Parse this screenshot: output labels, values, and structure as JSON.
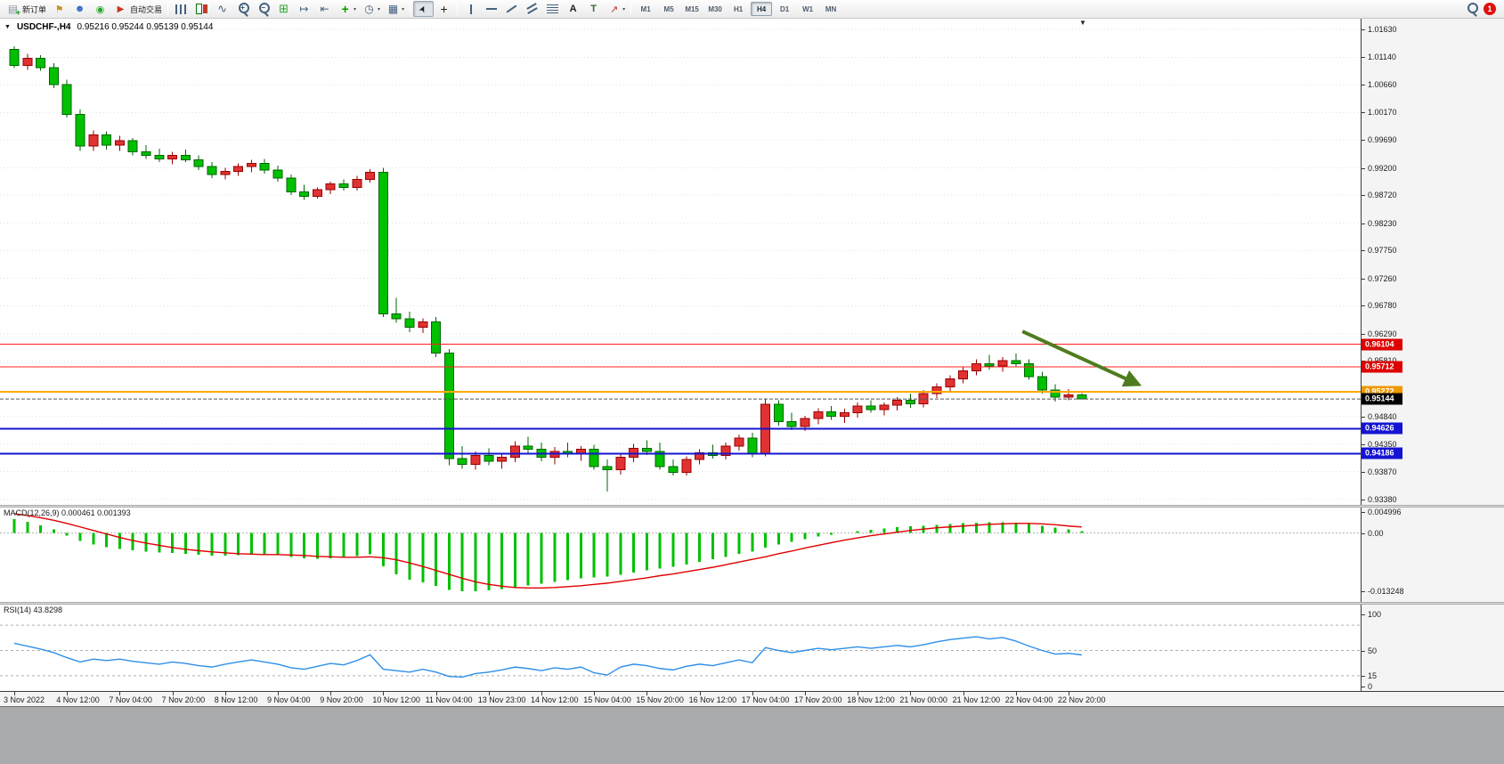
{
  "toolbar": {
    "items": [
      {
        "kind": "button",
        "name": "new-order-button",
        "icon": "new-order",
        "label": "新订单"
      },
      {
        "kind": "icon",
        "name": "profiles-button",
        "icon": "profiles"
      },
      {
        "kind": "icon",
        "name": "market-watch-button",
        "icon": "market-watch"
      },
      {
        "kind": "icon",
        "name": "navigator-button",
        "icon": "navigator"
      },
      {
        "kind": "button",
        "name": "auto-trading-button",
        "icon": "auto-trading",
        "label": "自动交易"
      },
      {
        "kind": "sep"
      },
      {
        "kind": "icon",
        "name": "bar-chart-button",
        "icon": "chart-bars"
      },
      {
        "kind": "icon",
        "name": "candlestick-chart-button",
        "icon": "chart-candles"
      },
      {
        "kind": "icon",
        "name": "line-chart-button",
        "icon": "chart-line"
      },
      {
        "kind": "icon",
        "name": "zoom-in-button",
        "icon": "zoom-in",
        "glyph": "+"
      },
      {
        "kind": "icon",
        "name": "zoom-out-button",
        "icon": "zoom-out",
        "glyph": "−"
      },
      {
        "kind": "icon",
        "name": "tile-windows-button",
        "icon": "tile"
      },
      {
        "kind": "icon",
        "name": "auto-scroll-button",
        "icon": "auto-scroll"
      },
      {
        "kind": "icon",
        "name": "chart-shift-button",
        "icon": "chart-shift"
      },
      {
        "kind": "icon",
        "name": "indicators-button",
        "icon": "indicators",
        "dropdown": true
      },
      {
        "kind": "icon",
        "name": "periods-button",
        "icon": "periods",
        "dropdown": true
      },
      {
        "kind": "icon",
        "name": "templates-button",
        "icon": "templates",
        "dropdown": true
      },
      {
        "kind": "sep"
      },
      {
        "kind": "icon",
        "name": "cursor-button",
        "icon": "cursor",
        "active": true
      },
      {
        "kind": "icon",
        "name": "crosshair-button",
        "icon": "crosshair"
      },
      {
        "kind": "sep"
      },
      {
        "kind": "icon",
        "name": "vertical-line-button",
        "icon": "vline"
      },
      {
        "kind": "icon",
        "name": "horizontal-line-button",
        "icon": "hline"
      },
      {
        "kind": "icon",
        "name": "trendline-button",
        "icon": "trendline"
      },
      {
        "kind": "icon",
        "name": "channel-button",
        "icon": "channel"
      },
      {
        "kind": "icon",
        "name": "fibonacci-button",
        "icon": "fibonacci"
      },
      {
        "kind": "icon",
        "name": "text-button",
        "icon": "text"
      },
      {
        "kind": "icon",
        "name": "text-label-button",
        "icon": "label"
      },
      {
        "kind": "icon",
        "name": "arrows-button",
        "icon": "arrows",
        "dropdown": true
      },
      {
        "kind": "sep"
      },
      {
        "kind": "tf",
        "name": "timeframe-m1",
        "label": "M1"
      },
      {
        "kind": "tf",
        "name": "timeframe-m5",
        "label": "M5"
      },
      {
        "kind": "tf",
        "name": "timeframe-m15",
        "label": "M15"
      },
      {
        "kind": "tf",
        "name": "timeframe-m30",
        "label": "M30"
      },
      {
        "kind": "tf",
        "name": "timeframe-h1",
        "label": "H1"
      },
      {
        "kind": "tf",
        "name": "timeframe-h4",
        "label": "H4",
        "active": true
      },
      {
        "kind": "tf",
        "name": "timeframe-d1",
        "label": "D1"
      },
      {
        "kind": "tf",
        "name": "timeframe-w1",
        "label": "W1"
      },
      {
        "kind": "tf",
        "name": "timeframe-mn",
        "label": "MN"
      }
    ],
    "right": {
      "notification_count": "1"
    }
  },
  "chart_data": {
    "type": "candlestick",
    "symbol_title": "USDCHF-,H4",
    "ohlc_text": "0.95216 0.95244 0.95139 0.95144",
    "colors": {
      "bull": "#E03232",
      "bull_border": "#990000",
      "bear": "#00C000",
      "bear_border": "#006600",
      "macd_histogram": "#00C000",
      "macd_signal": "#E00000",
      "rsi_line": "#2E8FE8",
      "grid": "#e2e2e2"
    },
    "price_axis": {
      "top_price": 1.018175,
      "bottom_price": 0.9328625,
      "ticks": [
        "1.01630",
        "1.01140",
        "1.00660",
        "1.00170",
        "0.99690",
        "0.99200",
        "0.98720",
        "0.98230",
        "0.97750",
        "0.97260",
        "0.96780",
        "0.96290",
        "0.95810",
        "0.94840",
        "0.94350",
        "0.93870",
        "0.93380"
      ]
    },
    "candles": [
      [
        1.0128,
        1.0133,
        1.0095,
        1.01
      ],
      [
        1.01,
        1.012,
        1.0092,
        1.0112
      ],
      [
        1.0112,
        1.0118,
        1.009,
        1.0096
      ],
      [
        1.0096,
        1.0104,
        1.006,
        1.0066
      ],
      [
        1.0066,
        1.0075,
        1.0008,
        1.0014
      ],
      [
        1.0014,
        1.0022,
        0.995,
        0.9958
      ],
      [
        0.9958,
        0.9986,
        0.995,
        0.9978
      ],
      [
        0.9978,
        0.9984,
        0.9952,
        0.996
      ],
      [
        0.996,
        0.9976,
        0.995,
        0.9968
      ],
      [
        0.9968,
        0.9972,
        0.9942,
        0.9948
      ],
      [
        0.9948,
        0.996,
        0.9936,
        0.9942
      ],
      [
        0.9942,
        0.9954,
        0.993,
        0.9936
      ],
      [
        0.9936,
        0.9948,
        0.9926,
        0.9942
      ],
      [
        0.9942,
        0.9952,
        0.993,
        0.9934
      ],
      [
        0.9934,
        0.9942,
        0.9916,
        0.9922
      ],
      [
        0.9922,
        0.993,
        0.9902,
        0.9908
      ],
      [
        0.9908,
        0.992,
        0.99,
        0.9914
      ],
      [
        0.9914,
        0.9928,
        0.9906,
        0.9922
      ],
      [
        0.9922,
        0.9934,
        0.9912,
        0.9928
      ],
      [
        0.9928,
        0.9936,
        0.991,
        0.9916
      ],
      [
        0.9916,
        0.9924,
        0.9896,
        0.9902
      ],
      [
        0.9902,
        0.9908,
        0.9872,
        0.9878
      ],
      [
        0.9878,
        0.989,
        0.9864,
        0.987
      ],
      [
        0.987,
        0.9886,
        0.9866,
        0.9882
      ],
      [
        0.9882,
        0.9896,
        0.9874,
        0.9892
      ],
      [
        0.9892,
        0.99,
        0.988,
        0.9886
      ],
      [
        0.9886,
        0.9906,
        0.988,
        0.99
      ],
      [
        0.99,
        0.9918,
        0.9894,
        0.9912
      ],
      [
        0.9912,
        0.992,
        0.9658,
        0.9664
      ],
      [
        0.9664,
        0.9692,
        0.9648,
        0.9655
      ],
      [
        0.9655,
        0.9668,
        0.9632,
        0.964
      ],
      [
        0.964,
        0.9656,
        0.963,
        0.965
      ],
      [
        0.965,
        0.9658,
        0.9588,
        0.9595
      ],
      [
        0.9595,
        0.9602,
        0.9398,
        0.941
      ],
      [
        0.941,
        0.9432,
        0.9392,
        0.94
      ],
      [
        0.94,
        0.9422,
        0.939,
        0.9415
      ],
      [
        0.9415,
        0.9428,
        0.9398,
        0.9405
      ],
      [
        0.9405,
        0.942,
        0.9392,
        0.9412
      ],
      [
        0.9412,
        0.944,
        0.9404,
        0.9432
      ],
      [
        0.9432,
        0.9448,
        0.942,
        0.9426
      ],
      [
        0.9426,
        0.9438,
        0.9405,
        0.9412
      ],
      [
        0.9412,
        0.943,
        0.94,
        0.9422
      ],
      [
        0.9422,
        0.9438,
        0.9412,
        0.9418
      ],
      [
        0.9418,
        0.9432,
        0.9406,
        0.9426
      ],
      [
        0.9426,
        0.9434,
        0.939,
        0.9396
      ],
      [
        0.9396,
        0.9408,
        0.9352,
        0.939
      ],
      [
        0.939,
        0.942,
        0.9382,
        0.9412
      ],
      [
        0.9412,
        0.9436,
        0.9404,
        0.9428
      ],
      [
        0.9428,
        0.9442,
        0.9416,
        0.9422
      ],
      [
        0.9422,
        0.9438,
        0.939,
        0.9396
      ],
      [
        0.9396,
        0.9408,
        0.938,
        0.9386
      ],
      [
        0.9386,
        0.9414,
        0.938,
        0.9408
      ],
      [
        0.9408,
        0.9426,
        0.94,
        0.942
      ],
      [
        0.942,
        0.9434,
        0.941,
        0.9415
      ],
      [
        0.9415,
        0.9438,
        0.9408,
        0.9432
      ],
      [
        0.9432,
        0.9452,
        0.9424,
        0.9446
      ],
      [
        0.9446,
        0.9455,
        0.9412,
        0.9418
      ],
      [
        0.9418,
        0.9515,
        0.9414,
        0.9505
      ],
      [
        0.9505,
        0.9512,
        0.9468,
        0.9475
      ],
      [
        0.9475,
        0.949,
        0.946,
        0.9466
      ],
      [
        0.9466,
        0.9485,
        0.9458,
        0.948
      ],
      [
        0.948,
        0.9498,
        0.947,
        0.9492
      ],
      [
        0.9492,
        0.9502,
        0.9478,
        0.9484
      ],
      [
        0.9484,
        0.9497,
        0.9472,
        0.949
      ],
      [
        0.949,
        0.9508,
        0.9482,
        0.9502
      ],
      [
        0.9502,
        0.9512,
        0.949,
        0.9496
      ],
      [
        0.9496,
        0.9508,
        0.9486,
        0.9504
      ],
      [
        0.9504,
        0.9518,
        0.9494,
        0.9512
      ],
      [
        0.9512,
        0.9524,
        0.9499,
        0.9506
      ],
      [
        0.9506,
        0.953,
        0.95,
        0.9524
      ],
      [
        0.9524,
        0.9542,
        0.9516,
        0.9536
      ],
      [
        0.9536,
        0.9556,
        0.9528,
        0.955
      ],
      [
        0.955,
        0.957,
        0.9542,
        0.9564
      ],
      [
        0.9564,
        0.9584,
        0.9556,
        0.9576
      ],
      [
        0.9576,
        0.9592,
        0.9566,
        0.9572
      ],
      [
        0.9572,
        0.9588,
        0.9562,
        0.9582
      ],
      [
        0.9582,
        0.9594,
        0.957,
        0.9576
      ],
      [
        0.9576,
        0.9584,
        0.9548,
        0.9554
      ],
      [
        0.9554,
        0.9562,
        0.9524,
        0.953
      ],
      [
        0.953,
        0.954,
        0.951,
        0.9518
      ],
      [
        0.9518,
        0.9532,
        0.9512,
        0.95216
      ],
      [
        0.95216,
        0.95244,
        0.95139,
        0.95144
      ]
    ],
    "hlines": [
      {
        "price": 0.96104,
        "color": "#FF2020",
        "width": 1,
        "badge_bg": "#DD0000"
      },
      {
        "price": 0.95712,
        "color": "#FF2020",
        "width": 1,
        "badge_bg": "#DD0000"
      },
      {
        "price": 0.95272,
        "color": "#FFA800",
        "width": 2,
        "badge_bg": "#EE9900"
      },
      {
        "price": 0.94626,
        "color": "#1414D2",
        "width": 2,
        "badge_bg": "#1414D2"
      },
      {
        "price": 0.94186,
        "color": "#1414D2",
        "width": 2,
        "badge_bg": "#1414D2"
      }
    ],
    "current_price": 0.95144,
    "current_price_badge_bg": "#000000",
    "arrow": {
      "from": {
        "bar": 76.5,
        "price": 0.9633
      },
      "to": {
        "bar": 85.3,
        "price": 0.954
      },
      "color": "#4E7C1F"
    },
    "time_labels": [
      "3 Nov 2022",
      "4 Nov 12:00",
      "7 Nov 04:00",
      "7 Nov 20:00",
      "8 Nov 12:00",
      "9 Nov 04:00",
      "9 Nov 20:00",
      "10 Nov 12:00",
      "11 Nov 04:00",
      "13 Nov 23:00",
      "14 Nov 12:00",
      "15 Nov 04:00",
      "15 Nov 20:00",
      "16 Nov 12:00",
      "17 Nov 04:00",
      "17 Nov 20:00",
      "18 Nov 12:00",
      "21 Nov 00:00",
      "21 Nov 12:00",
      "22 Nov 04:00",
      "22 Nov 20:00"
    ],
    "macd": {
      "name": "MACD(12,26,9)",
      "values_text": "0.000461 0.001393",
      "max": 0.004996,
      "min": -0.013248,
      "axis_labels": [
        "0.004996",
        "0.00",
        "-0.013248"
      ],
      "histogram": [
        0.0032,
        0.0026,
        0.0018,
        0.0008,
        -0.0006,
        -0.0018,
        -0.0026,
        -0.0032,
        -0.0036,
        -0.0039,
        -0.0042,
        -0.0044,
        -0.0045,
        -0.0047,
        -0.0049,
        -0.0051,
        -0.0051,
        -0.005,
        -0.0048,
        -0.0048,
        -0.005,
        -0.0054,
        -0.0057,
        -0.0058,
        -0.0057,
        -0.0055,
        -0.0052,
        -0.0048,
        -0.0076,
        -0.0094,
        -0.0106,
        -0.0112,
        -0.012,
        -0.0129,
        -0.0132,
        -0.0132,
        -0.013,
        -0.0127,
        -0.0123,
        -0.0119,
        -0.0115,
        -0.0111,
        -0.0107,
        -0.0103,
        -0.0101,
        -0.0099,
        -0.0095,
        -0.009,
        -0.0085,
        -0.0081,
        -0.0077,
        -0.0072,
        -0.0066,
        -0.006,
        -0.0054,
        -0.0047,
        -0.0042,
        -0.0033,
        -0.0026,
        -0.002,
        -0.0014,
        -0.0008,
        -0.0004,
        0.0,
        0.0004,
        0.0007,
        0.001,
        0.0013,
        0.0015,
        0.0017,
        0.0019,
        0.0021,
        0.0023,
        0.0024,
        0.0025,
        0.0025,
        0.0024,
        0.0021,
        0.0017,
        0.0012,
        0.0008,
        0.000461
      ],
      "signal": [
        0.0044,
        0.004,
        0.0035,
        0.0029,
        0.0022,
        0.0014,
        0.0006,
        -0.0002,
        -0.001,
        -0.0017,
        -0.0023,
        -0.0028,
        -0.0033,
        -0.0037,
        -0.004,
        -0.0043,
        -0.0045,
        -0.0047,
        -0.0048,
        -0.0049,
        -0.0049,
        -0.005,
        -0.0051,
        -0.0053,
        -0.0054,
        -0.0055,
        -0.0055,
        -0.0054,
        -0.0056,
        -0.0061,
        -0.0068,
        -0.0076,
        -0.0085,
        -0.0094,
        -0.0103,
        -0.0111,
        -0.0117,
        -0.0121,
        -0.0124,
        -0.0125,
        -0.0125,
        -0.0124,
        -0.0122,
        -0.012,
        -0.0117,
        -0.0114,
        -0.011,
        -0.0106,
        -0.0102,
        -0.0097,
        -0.0093,
        -0.0088,
        -0.0083,
        -0.0078,
        -0.0072,
        -0.0066,
        -0.006,
        -0.0054,
        -0.0047,
        -0.0041,
        -0.0034,
        -0.0028,
        -0.0022,
        -0.0016,
        -0.0011,
        -0.0006,
        -0.0002,
        0.0002,
        0.0006,
        0.0009,
        0.0012,
        0.0014,
        0.0016,
        0.0018,
        0.002,
        0.0021,
        0.0022,
        0.0022,
        0.0021,
        0.0019,
        0.0016,
        0.001393
      ]
    },
    "rsi": {
      "name": "RSI(14)",
      "value_text": "43.8298",
      "levels": [
        85,
        50,
        15
      ],
      "axis_labels": [
        "100",
        "50",
        "15",
        "0"
      ],
      "series": [
        60,
        56,
        52,
        47,
        40,
        34,
        38,
        36,
        38,
        35,
        33,
        31,
        34,
        32,
        29,
        27,
        31,
        34,
        37,
        34,
        31,
        26,
        24,
        28,
        32,
        30,
        36,
        44,
        24,
        22,
        20,
        24,
        20,
        14,
        13,
        18,
        20,
        23,
        27,
        25,
        22,
        26,
        24,
        27,
        19,
        16,
        27,
        31,
        29,
        25,
        23,
        28,
        31,
        29,
        33,
        37,
        33,
        54,
        50,
        47,
        50,
        53,
        51,
        53,
        55,
        53,
        55,
        57,
        55,
        58,
        62,
        65,
        67,
        69,
        66,
        68,
        63,
        56,
        50,
        45,
        46,
        43.83
      ]
    }
  }
}
